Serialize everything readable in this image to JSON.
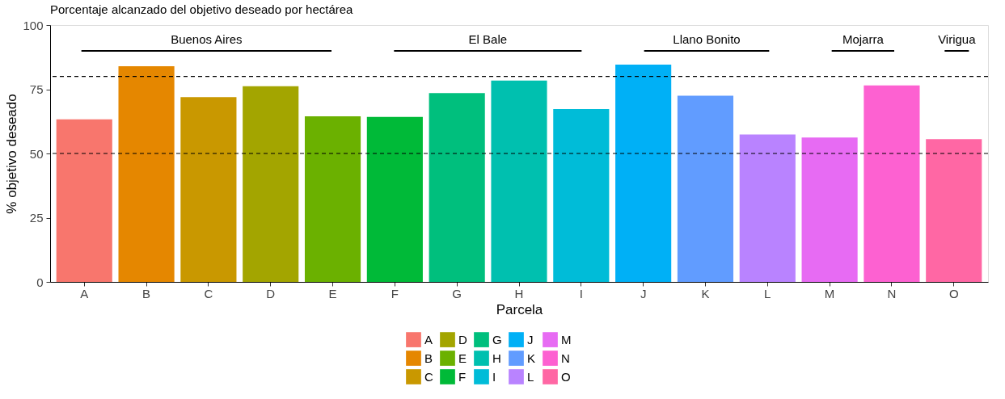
{
  "chart_data": {
    "type": "bar",
    "title": "Porcentaje alcanzado del objetivo deseado por hectárea",
    "xlabel": "Parcela",
    "ylabel": "% objetivo deseado",
    "categories": [
      "A",
      "B",
      "C",
      "D",
      "E",
      "F",
      "G",
      "H",
      "I",
      "J",
      "K",
      "L",
      "M",
      "N",
      "O"
    ],
    "series": [
      {
        "name": "A",
        "color": "#f8766d",
        "values": [
          63.3,
          null,
          null,
          null,
          null,
          null,
          null,
          null,
          null,
          null,
          null,
          null,
          null,
          null,
          null
        ]
      },
      {
        "name": "B",
        "color": "#e58700",
        "values": [
          null,
          84.0,
          null,
          null,
          null,
          null,
          null,
          null,
          null,
          null,
          null,
          null,
          null,
          null,
          null
        ]
      },
      {
        "name": "C",
        "color": "#c99800",
        "values": [
          null,
          null,
          71.9,
          null,
          null,
          null,
          null,
          null,
          null,
          null,
          null,
          null,
          null,
          null,
          null
        ]
      },
      {
        "name": "D",
        "color": "#a3a500",
        "values": [
          null,
          null,
          null,
          76.2,
          null,
          null,
          null,
          null,
          null,
          null,
          null,
          null,
          null,
          null,
          null
        ]
      },
      {
        "name": "E",
        "color": "#6bb100",
        "values": [
          null,
          null,
          null,
          null,
          64.5,
          null,
          null,
          null,
          null,
          null,
          null,
          null,
          null,
          null,
          null
        ]
      },
      {
        "name": "F",
        "color": "#00ba38",
        "values": [
          null,
          null,
          null,
          null,
          null,
          64.2,
          null,
          null,
          null,
          null,
          null,
          null,
          null,
          null,
          null
        ]
      },
      {
        "name": "G",
        "color": "#00bf7d",
        "values": [
          null,
          null,
          null,
          null,
          null,
          null,
          73.5,
          null,
          null,
          null,
          null,
          null,
          null,
          null,
          null
        ]
      },
      {
        "name": "H",
        "color": "#00c0af",
        "values": [
          null,
          null,
          null,
          null,
          null,
          null,
          null,
          78.4,
          null,
          null,
          null,
          null,
          null,
          null,
          null
        ]
      },
      {
        "name": "I",
        "color": "#00bcd8",
        "values": [
          null,
          null,
          null,
          null,
          null,
          null,
          null,
          null,
          67.3,
          null,
          null,
          null,
          null,
          null,
          null
        ]
      },
      {
        "name": "J",
        "color": "#00b0f6",
        "values": [
          null,
          null,
          null,
          null,
          null,
          null,
          null,
          null,
          null,
          84.6,
          null,
          null,
          null,
          null,
          null
        ]
      },
      {
        "name": "K",
        "color": "#619cff",
        "values": [
          null,
          null,
          null,
          null,
          null,
          null,
          null,
          null,
          null,
          null,
          72.5,
          null,
          null,
          null,
          null
        ]
      },
      {
        "name": "L",
        "color": "#b983ff",
        "values": [
          null,
          null,
          null,
          null,
          null,
          null,
          null,
          null,
          null,
          null,
          null,
          57.4,
          null,
          null,
          null
        ]
      },
      {
        "name": "M",
        "color": "#e76bf3",
        "values": [
          null,
          null,
          null,
          null,
          null,
          null,
          null,
          null,
          null,
          null,
          null,
          null,
          56.2,
          null,
          null
        ]
      },
      {
        "name": "N",
        "color": "#fd61d1",
        "values": [
          null,
          null,
          null,
          null,
          null,
          null,
          null,
          null,
          null,
          null,
          null,
          null,
          null,
          76.5,
          null
        ]
      },
      {
        "name": "O",
        "color": "#ff67a4",
        "values": [
          null,
          null,
          null,
          null,
          null,
          null,
          null,
          null,
          null,
          null,
          null,
          null,
          null,
          null,
          55.6
        ]
      }
    ],
    "ylim": [
      0,
      100
    ],
    "yticks": [
      0,
      25,
      50,
      75,
      100
    ],
    "grid": false,
    "legend": "bottom",
    "ref_lines": [
      {
        "axis": "y",
        "value": 80,
        "line_style": "dashed",
        "color": "#000000"
      },
      {
        "axis": "y",
        "value": 50,
        "line_style": "dashed",
        "color": "#000000"
      }
    ],
    "annotations": [
      "Buenos Aires",
      "El Bale",
      "Llano Bonito",
      "Mojarra",
      "Virigua"
    ]
  }
}
